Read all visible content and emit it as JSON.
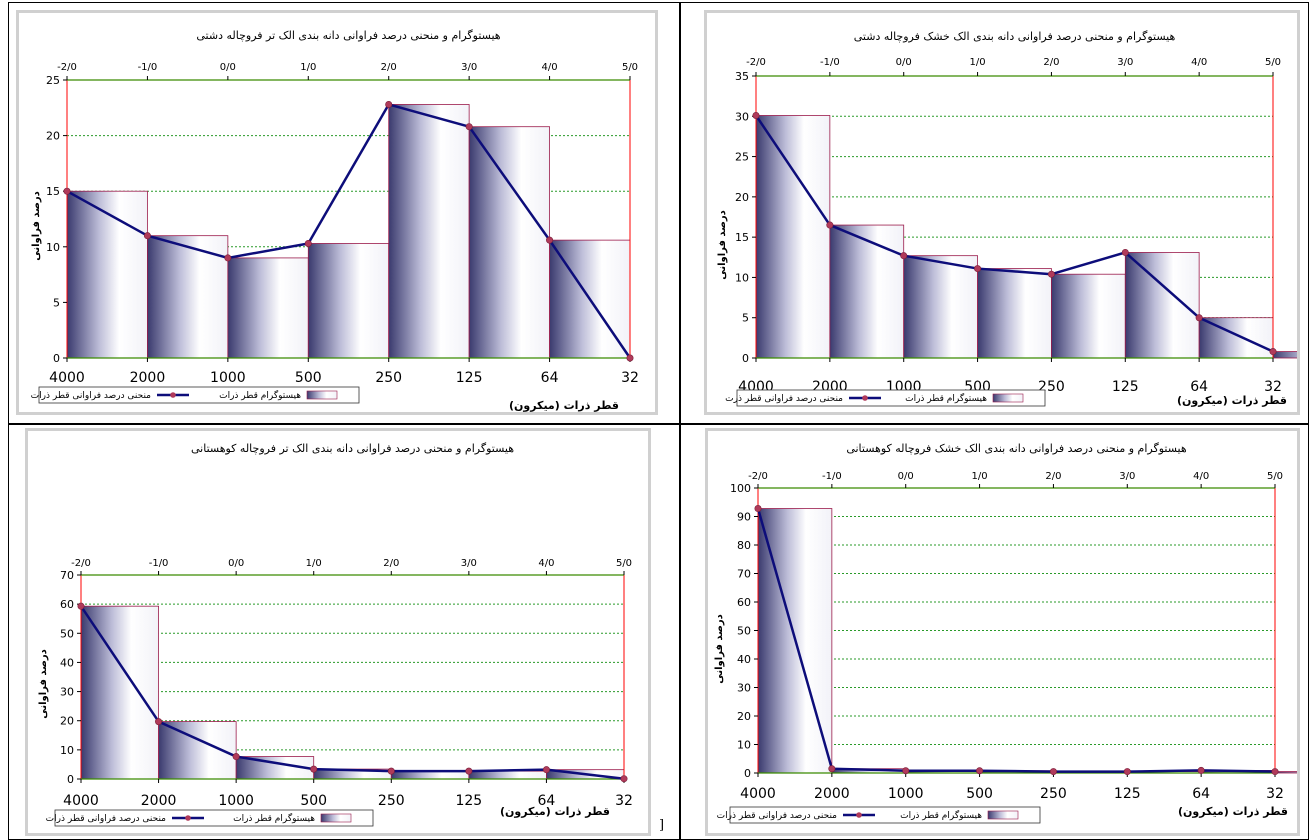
{
  "legend": {
    "bar_label": "هیستوگرام قطر ذرات",
    "line_label": "منحنی درصد فراوانی قطر ذرات",
    "line_label_alt": "منحنی درصد فراوانی قطر ذرت"
  },
  "stray_mark": "]",
  "colors": {
    "line": "#0d0d7a",
    "marker": "#b03a5a",
    "grid": "#2a9a2a",
    "axis_red": "#ff0000",
    "axis_green": "#3a8a00",
    "bar_edge": "#9b1b4b",
    "bar_dark": "#3a3a6e"
  },
  "chart_data": [
    {
      "type": "bar+line",
      "title": "هیستوگرام و منحنی درصد فراوانی دانه بندی الک تر فروچاله دشتی",
      "ylabel": "درصد فراوانی",
      "xlabel": "قطر ذرات (میکرون)",
      "legend_line": "منحنی درصد فراوانی قطر ذرات",
      "x_bottom": [
        "4000",
        "2000",
        "1000",
        "500",
        "250",
        "125",
        "64",
        "32"
      ],
      "x_top": [
        "-2/0",
        "-1/0",
        "0/0",
        "1/0",
        "2/0",
        "3/0",
        "4/0",
        "5/0"
      ],
      "ylim": [
        0,
        25
      ],
      "yticks": [
        0,
        5,
        10,
        15,
        20,
        25
      ],
      "bars": [
        15,
        11,
        9,
        10.3,
        22.8,
        20.8,
        10.6
      ],
      "line": [
        15,
        11,
        9,
        10.3,
        22.8,
        20.8,
        10.6,
        0
      ]
    },
    {
      "type": "bar+line",
      "title": "هیستوگرام و منحنی درصد فراوانی دانه بندی الک خشک فروچاله دشتی",
      "ylabel": "درصد فراوانی",
      "xlabel": "قطر ذرات (میکرون)",
      "legend_line": "منحنی درصد فراوانی قطر ذرت",
      "x_bottom": [
        "4000",
        "2000",
        "1000",
        "500",
        "250",
        "125",
        "64",
        "32"
      ],
      "x_top": [
        "-2/0",
        "-1/0",
        "0/0",
        "1/0",
        "2/0",
        "3/0",
        "4/0",
        "5/0"
      ],
      "ylim": [
        0,
        35
      ],
      "yticks": [
        0,
        5,
        10,
        15,
        20,
        25,
        30,
        35
      ],
      "bars": [
        30.1,
        16.5,
        12.7,
        11.1,
        10.4,
        13.1,
        5.0,
        0.8
      ],
      "line": [
        30.1,
        16.5,
        12.7,
        11.1,
        10.4,
        13.1,
        5.0,
        0.8
      ]
    },
    {
      "type": "bar+line",
      "title": "هیستوگرام و منحنی درصد فراوانی دانه بندی الک تر فروچاله کوهستانی",
      "ylabel": "درصد فراوانی",
      "xlabel": "قطر ذرات (میکرون)",
      "legend_line": "منحنی درصد فراوانی قطر ذرات",
      "x_bottom": [
        "4000",
        "2000",
        "1000",
        "500",
        "250",
        "125",
        "64",
        "32"
      ],
      "x_top": [
        "-2/0",
        "-1/0",
        "0/0",
        "1/0",
        "2/0",
        "3/0",
        "4/0",
        "5/0"
      ],
      "ylim": [
        0,
        70
      ],
      "yticks": [
        0,
        10,
        20,
        30,
        40,
        50,
        60,
        70
      ],
      "bars": [
        59.3,
        19.7,
        7.7,
        3.4,
        2.7,
        2.7,
        3.2
      ],
      "line": [
        59.3,
        19.7,
        7.7,
        3.4,
        2.7,
        2.7,
        3.2,
        0.1
      ]
    },
    {
      "type": "bar+line",
      "title": "هیستوگرام و منحنی درصد فراوانی دانه بندی الک خشک فروچاله کوهستانی",
      "ylabel": "درصد فراوانی",
      "xlabel": "قطر ذرات (میکرون)",
      "legend_line": "منحنی درصد فراوانی قطر ذرات",
      "x_bottom": [
        "4000",
        "2000",
        "1000",
        "500",
        "250",
        "125",
        "64",
        "32"
      ],
      "x_top": [
        "-2/0",
        "-1/0",
        "0/0",
        "1/0",
        "2/0",
        "3/0",
        "4/0",
        "5/0"
      ],
      "ylim": [
        0,
        100
      ],
      "yticks": [
        0,
        10,
        20,
        30,
        40,
        50,
        60,
        70,
        80,
        90,
        100
      ],
      "bars": [
        92.8,
        1.5,
        0.8,
        0.8,
        0.5,
        0.5,
        0.9,
        0.5
      ],
      "line": [
        92.8,
        1.5,
        0.8,
        0.8,
        0.5,
        0.5,
        0.9,
        0.5
      ]
    }
  ]
}
